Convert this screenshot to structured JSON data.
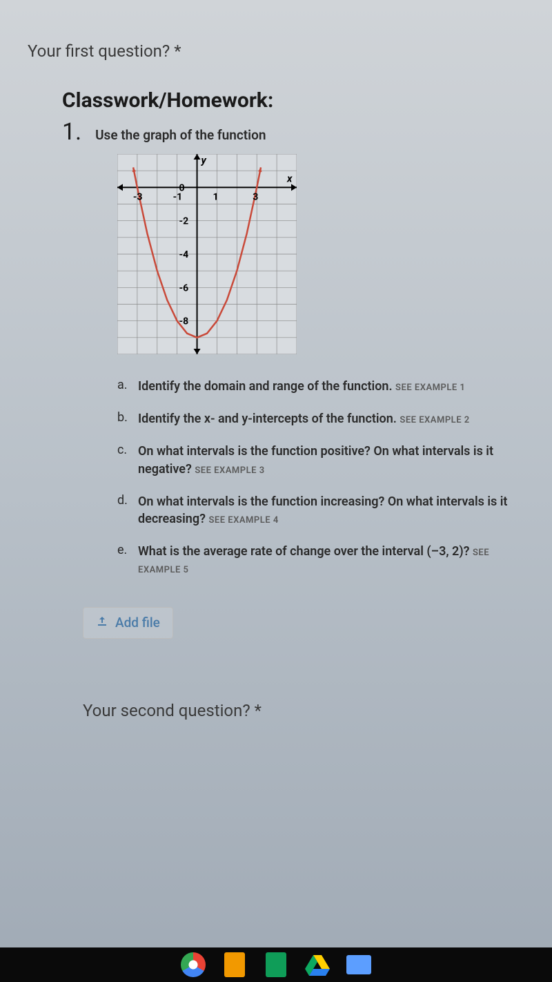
{
  "question1_label": "Your first question? *",
  "section_title": "Classwork/Homework:",
  "problem": {
    "number": "1.",
    "instruction": "Use the graph of the function"
  },
  "graph": {
    "type": "parabola",
    "x_label": "x",
    "y_label": "y",
    "x_ticks": [
      "-3",
      "-1",
      "1",
      "3"
    ],
    "x_tick_positions": [
      -3,
      -1,
      1,
      3
    ],
    "y_ticks": [
      "0",
      "-2",
      "-4",
      "-6",
      "-8"
    ],
    "y_tick_positions": [
      0,
      -2,
      -4,
      -6,
      -8
    ],
    "xlim": [
      -4,
      5
    ],
    "ylim": [
      -10,
      2
    ],
    "curve_color": "#c94a3a",
    "grid_color": "#888888",
    "axis_color": "#000000",
    "background_color": "#d8dce0",
    "line_width": 2.5,
    "vertex": [
      0,
      -9
    ],
    "curve_points": [
      [
        -3.2,
        1.2
      ],
      [
        -3,
        0
      ],
      [
        -2.5,
        -2.75
      ],
      [
        -2,
        -5
      ],
      [
        -1.5,
        -6.75
      ],
      [
        -1,
        -8
      ],
      [
        -0.5,
        -8.75
      ],
      [
        0,
        -9
      ],
      [
        0.5,
        -8.75
      ],
      [
        1,
        -8
      ],
      [
        1.5,
        -6.75
      ],
      [
        2,
        -5
      ],
      [
        2.5,
        -2.75
      ],
      [
        3,
        0
      ],
      [
        3.2,
        1.2
      ]
    ]
  },
  "sub_items": [
    {
      "letter": "a.",
      "text": "Identify the domain and range of the function.",
      "example": "SEE EXAMPLE 1"
    },
    {
      "letter": "b.",
      "text": "Identify the x- and y-intercepts of the function.",
      "example": "SEE EXAMPLE 2"
    },
    {
      "letter": "c.",
      "text": "On what intervals is the function positive? On what intervals is it negative?",
      "example": "SEE EXAMPLE 3"
    },
    {
      "letter": "d.",
      "text": "On what intervals is the function increasing? On what intervals is it decreasing?",
      "example": "SEE EXAMPLE 4"
    },
    {
      "letter": "e.",
      "text": "What is the average rate of change over the interval (–3, 2)?",
      "example": "SEE EXAMPLE 5"
    }
  ],
  "add_file_label": "Add file",
  "question2_label": "Your second question? *"
}
